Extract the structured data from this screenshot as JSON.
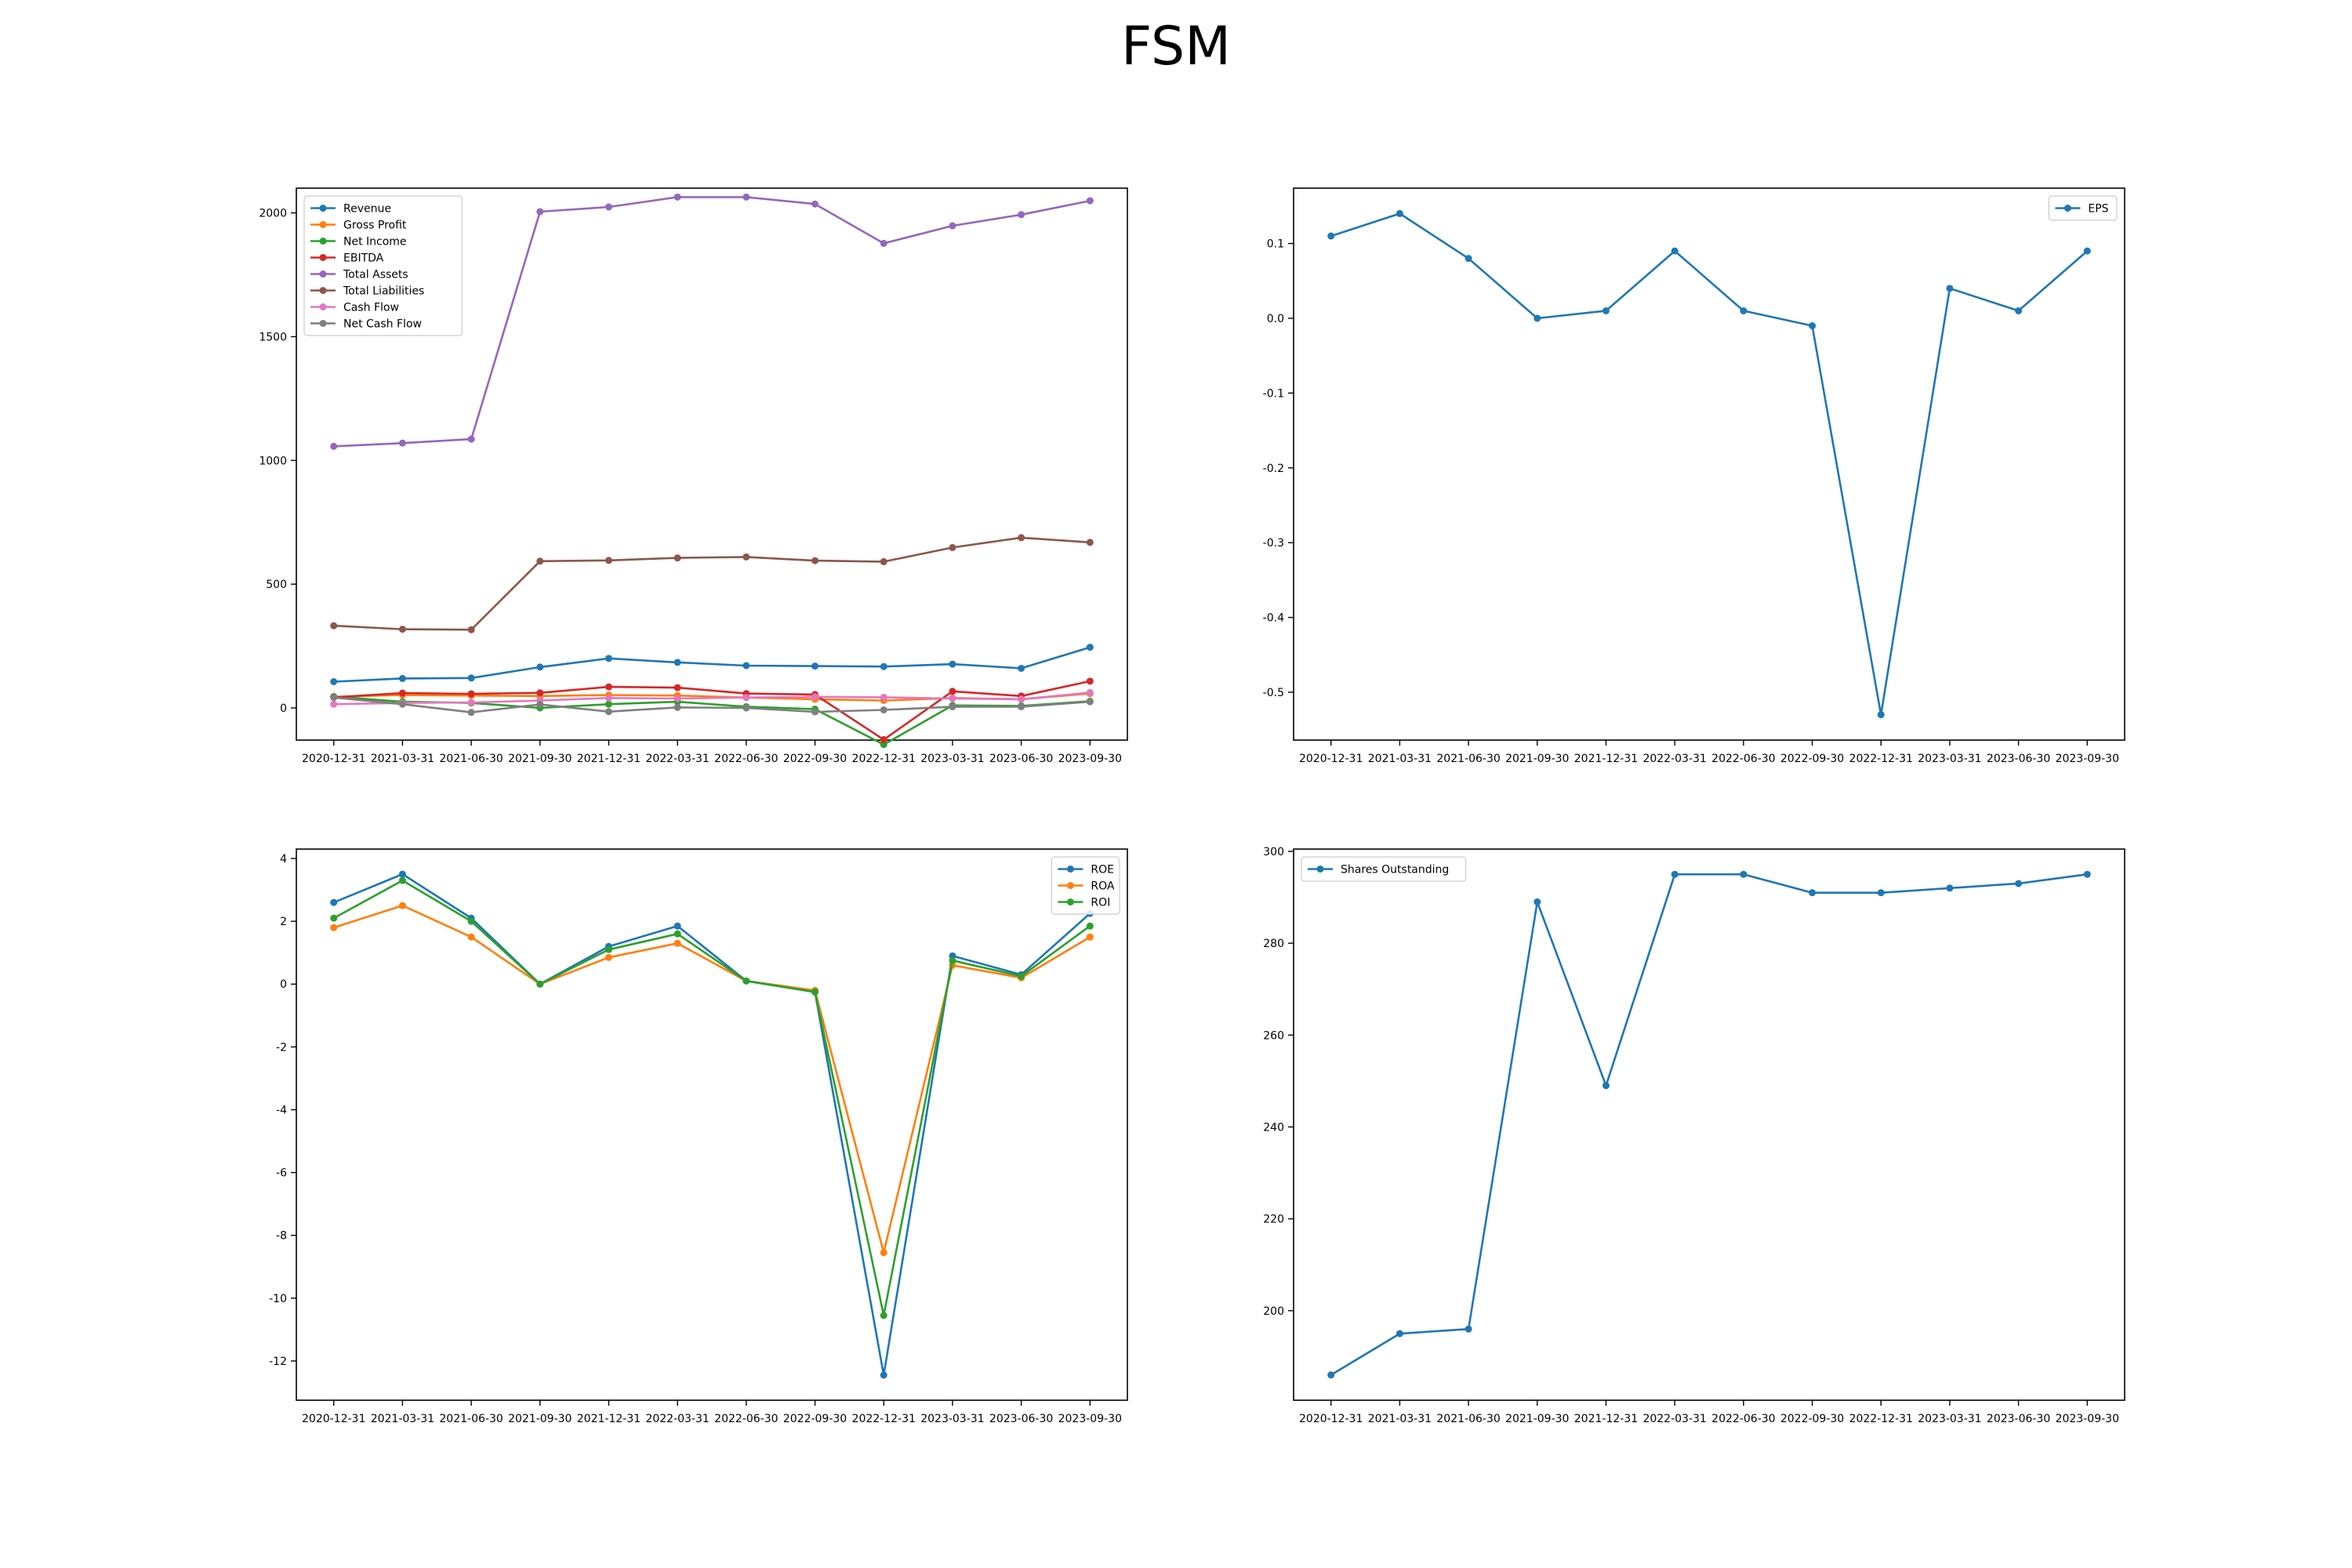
{
  "figure": {
    "title": "FSM"
  },
  "chart_data": [
    {
      "type": "line",
      "categories": [
        "2020-12-31",
        "2021-03-31",
        "2021-06-30",
        "2021-09-30",
        "2021-12-31",
        "2022-03-31",
        "2022-06-30",
        "2022-09-30",
        "2022-12-31",
        "2023-03-31",
        "2023-06-30",
        "2023-09-30"
      ],
      "ylim": [
        -130,
        2100
      ],
      "yticks": [
        0,
        500,
        1000,
        1500,
        2000
      ],
      "grid": false,
      "legend": "top-left",
      "series": [
        {
          "name": "Revenue",
          "color": "#1f77b4",
          "values": [
            106,
            119,
            121,
            165,
            200,
            184,
            171,
            169,
            167,
            177,
            160,
            245
          ]
        },
        {
          "name": "Gross Profit",
          "color": "#ff7f0e",
          "values": [
            45,
            52,
            50,
            48,
            52,
            50,
            42,
            35,
            30,
            40,
            35,
            58
          ]
        },
        {
          "name": "Net Income",
          "color": "#2ca02c",
          "values": [
            46,
            25,
            20,
            0,
            15,
            25,
            5,
            -5,
            -148,
            10,
            8,
            27
          ]
        },
        {
          "name": "EBITDA",
          "color": "#d62728",
          "values": [
            43,
            60,
            57,
            61,
            85,
            82,
            58,
            54,
            -128,
            67,
            48,
            108
          ]
        },
        {
          "name": "Total Assets",
          "color": "#9467bd",
          "values": [
            1057,
            1070,
            1086,
            2005,
            2024,
            2064,
            2064,
            2036,
            1877,
            1948,
            1993,
            2049
          ]
        },
        {
          "name": "Total Liabilities",
          "color": "#8c564b",
          "values": [
            332,
            318,
            316,
            593,
            596,
            606,
            610,
            595,
            591,
            648,
            688,
            669
          ]
        },
        {
          "name": "Cash Flow",
          "color": "#e377c2",
          "values": [
            15,
            20,
            22,
            30,
            40,
            38,
            42,
            45,
            43,
            38,
            35,
            62
          ]
        },
        {
          "name": "Net Cash Flow",
          "color": "#7f7f7f",
          "values": [
            42,
            15,
            -18,
            14,
            -15,
            2,
            0,
            -16,
            -8,
            5,
            5,
            25
          ]
        }
      ]
    },
    {
      "type": "line",
      "categories": [
        "2020-12-31",
        "2021-03-31",
        "2021-06-30",
        "2021-09-30",
        "2021-12-31",
        "2022-03-31",
        "2022-06-30",
        "2022-09-30",
        "2022-12-31",
        "2023-03-31",
        "2023-06-30",
        "2023-09-30"
      ],
      "ylim": [
        -0.564,
        0.174
      ],
      "yticks": [
        -0.5,
        -0.4,
        -0.3,
        -0.2,
        -0.1,
        0.0,
        0.1
      ],
      "ytick_decimals": 1,
      "grid": false,
      "legend": "top-right",
      "series": [
        {
          "name": "EPS",
          "color": "#1f77b4",
          "values": [
            0.11,
            0.14,
            0.08,
            0.0,
            0.01,
            0.09,
            0.01,
            -0.01,
            -0.53,
            0.04,
            0.01,
            0.09
          ]
        }
      ]
    },
    {
      "type": "line",
      "categories": [
        "2020-12-31",
        "2021-03-31",
        "2021-06-30",
        "2021-09-30",
        "2021-12-31",
        "2022-03-31",
        "2022-06-30",
        "2022-09-30",
        "2022-12-31",
        "2023-03-31",
        "2023-06-30",
        "2023-09-30"
      ],
      "ylim": [
        -13.25,
        4.3
      ],
      "yticks": [
        -12,
        -10,
        -8,
        -6,
        -4,
        -2,
        0,
        2,
        4
      ],
      "grid": false,
      "legend": "top-right",
      "series": [
        {
          "name": "ROE",
          "color": "#1f77b4",
          "values": [
            2.6,
            3.5,
            2.1,
            0.0,
            1.2,
            1.85,
            0.1,
            -0.25,
            -12.45,
            0.9,
            0.3,
            2.25
          ]
        },
        {
          "name": "ROA",
          "color": "#ff7f0e",
          "values": [
            1.8,
            2.5,
            1.5,
            0.0,
            0.85,
            1.3,
            0.1,
            -0.2,
            -8.55,
            0.6,
            0.2,
            1.5
          ]
        },
        {
          "name": "ROI",
          "color": "#2ca02c",
          "values": [
            2.1,
            3.3,
            2.0,
            0.0,
            1.1,
            1.6,
            0.1,
            -0.25,
            -10.55,
            0.75,
            0.25,
            1.85
          ]
        }
      ]
    },
    {
      "type": "line",
      "categories": [
        "2020-12-31",
        "2021-03-31",
        "2021-06-30",
        "2021-09-30",
        "2021-12-31",
        "2022-03-31",
        "2022-06-30",
        "2022-09-30",
        "2022-12-31",
        "2023-03-31",
        "2023-06-30",
        "2023-09-30"
      ],
      "ylim": [
        180.5,
        300.5
      ],
      "yticks": [
        200,
        220,
        240,
        260,
        280,
        300
      ],
      "grid": false,
      "legend": "top-left",
      "series": [
        {
          "name": "Shares Outstanding",
          "color": "#1f77b4",
          "values": [
            186,
            195,
            196,
            289,
            249,
            295,
            295,
            291,
            291,
            292,
            293,
            295
          ]
        }
      ]
    }
  ]
}
